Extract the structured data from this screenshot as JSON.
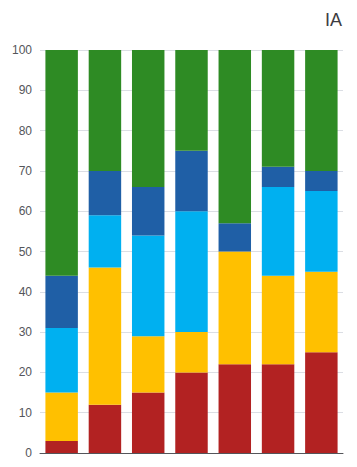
{
  "chart_data": {
    "type": "bar",
    "title": "IA",
    "stacked": true,
    "categories": [
      null,
      null,
      null,
      null,
      null,
      null,
      null
    ],
    "series": [
      {
        "color": "#B22222",
        "values": [
          3,
          12,
          15,
          20,
          22,
          22,
          25
        ]
      },
      {
        "color": "#FFC000",
        "values": [
          12,
          34,
          14,
          10,
          28,
          22,
          20
        ]
      },
      {
        "color": "#00B0F0",
        "values": [
          16,
          13,
          25,
          30,
          0,
          22,
          20
        ]
      },
      {
        "color": "#1F5FA6",
        "values": [
          13,
          11,
          12,
          15,
          7,
          5,
          5
        ]
      },
      {
        "color": "#2E8B24",
        "values": [
          56,
          30,
          34,
          25,
          43,
          29,
          30
        ]
      }
    ],
    "ylim": [
      0,
      100
    ],
    "yticks": [
      0,
      10,
      20,
      30,
      40,
      50,
      60,
      70,
      80,
      90,
      100
    ],
    "grid": true,
    "tick_labels": "y"
  }
}
